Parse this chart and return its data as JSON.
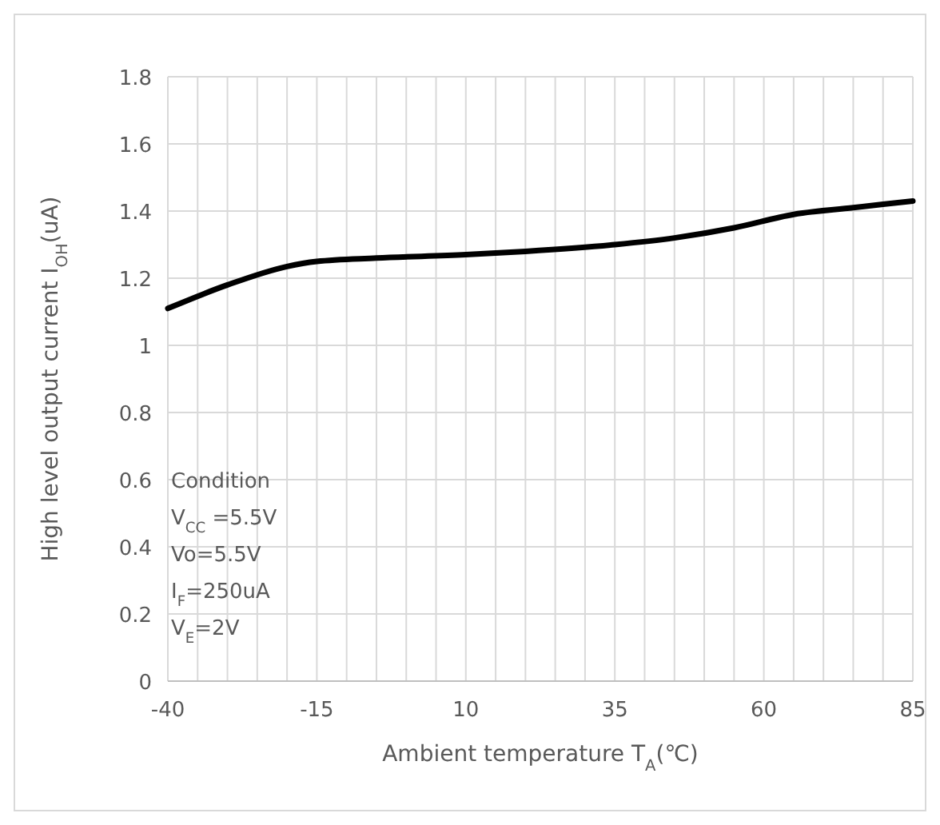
{
  "chart_data": {
    "type": "line",
    "xlabel": "Ambient temperature T$_{A}$(℃)",
    "ylabel": "High level output current I$_{OH}$(uA)",
    "x": [
      -40,
      -30,
      -20,
      -15,
      -5,
      10,
      20,
      35,
      45,
      55,
      65,
      75,
      85
    ],
    "series": [
      {
        "color": "#000000",
        "values": [
          1.11,
          1.18,
          1.235,
          1.25,
          1.26,
          1.27,
          1.28,
          1.3,
          1.32,
          1.35,
          1.39,
          1.41,
          1.43
        ]
      }
    ],
    "xlim": [
      -40,
      85
    ],
    "xticks": [
      -40,
      {
        "value": -35,
        "label": null
      },
      {
        "value": -30,
        "label": null
      },
      {
        "value": -25,
        "label": null
      },
      {
        "value": -20,
        "label": null
      },
      -15,
      {
        "value": -10,
        "label": null
      },
      {
        "value": -5,
        "label": null
      },
      {
        "value": 0,
        "label": null
      },
      {
        "value": 5,
        "label": null
      },
      10,
      {
        "value": 15,
        "label": null
      },
      {
        "value": 20,
        "label": null
      },
      {
        "value": 25,
        "label": null
      },
      {
        "value": 30,
        "label": null
      },
      35,
      {
        "value": 40,
        "label": null
      },
      {
        "value": 45,
        "label": null
      },
      {
        "value": 50,
        "label": null
      },
      {
        "value": 55,
        "label": null
      },
      60,
      {
        "value": 65,
        "label": null
      },
      {
        "value": 70,
        "label": null
      },
      {
        "value": 75,
        "label": null
      },
      {
        "value": 80,
        "label": null
      },
      85
    ],
    "ylim": [
      0,
      1.8
    ],
    "yticks": [
      0,
      0.2,
      0.4,
      0.6,
      0.8,
      1,
      1.2,
      1.4,
      1.6,
      1.8
    ],
    "grid": true,
    "marker": "none",
    "line_style": "solid",
    "annotations": [
      "Condition",
      "V$_{CC}$ =5.5V",
      "Vo=5.5V",
      "I$_{F}$=250uA",
      "V$_{E}$=2V"
    ]
  }
}
